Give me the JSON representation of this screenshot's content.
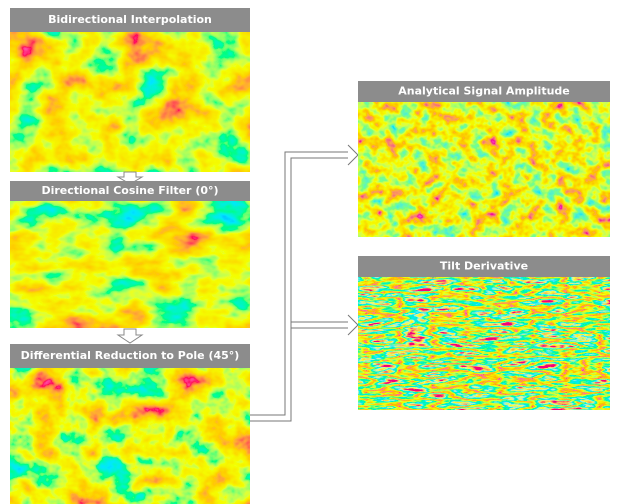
{
  "nodes": [
    {
      "label": "Bidirectional Interpolation"
    },
    {
      "label": "Directional Cosine Filter (0°)"
    },
    {
      "label": "Differential Reduction to Pole (45°)"
    },
    {
      "label": "Analytical Signal Amplitude"
    },
    {
      "label": "Tilt Derivative"
    }
  ]
}
